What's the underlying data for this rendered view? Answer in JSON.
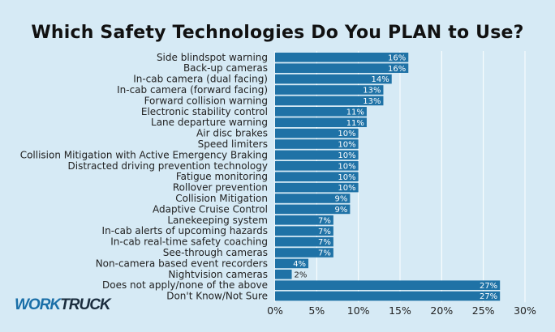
{
  "logo": {
    "part1": "WORK",
    "part2": "TRUCK"
  },
  "colors": {
    "bar": "#1f72a6",
    "background": "#d6eaf5",
    "grid": "#ffffff",
    "text": "#222222"
  },
  "chart_data": {
    "type": "bar",
    "orientation": "horizontal",
    "title": "Which Safety Technologies Do You PLAN to Use?",
    "xlabel": "",
    "ylabel": "",
    "xlim": [
      0,
      30
    ],
    "x_ticks": [
      "0%",
      "5%",
      "10%",
      "15%",
      "20%",
      "25%",
      "30%"
    ],
    "grid": "vertical",
    "categories": [
      "Side blindspot warning",
      "Back-up cameras",
      "In-cab camera (dual facing)",
      "In-cab camera (forward facing)",
      "Forward collision warning",
      "Electronic stability control",
      "Lane departure warning",
      "Air disc brakes",
      "Speed limiters",
      "Collision Mitigation with Active Emergency Braking",
      "Distracted driving prevention technology",
      "Fatigue monitoring",
      "Rollover prevention",
      "Collision Mitigation",
      "Adaptive Cruise Control",
      "Lanekeeping system",
      "In-cab alerts of upcoming hazards",
      "In-cab real-time safety coaching",
      "See-through cameras",
      "Non-camera based event recorders",
      "Nightvision cameras",
      "Does not apply/none of the above",
      "Don't Know/Not Sure"
    ],
    "values": [
      16,
      16,
      14,
      13,
      13,
      11,
      11,
      10,
      10,
      10,
      10,
      10,
      10,
      9,
      9,
      7,
      7,
      7,
      7,
      4,
      2,
      27,
      27
    ],
    "data_labels": [
      "16%",
      "16%",
      "14%",
      "13%",
      "13%",
      "11%",
      "11%",
      "10%",
      "10%",
      "10%",
      "10%",
      "10%",
      "10%",
      "9%",
      "9%",
      "7%",
      "7%",
      "7%",
      "7%",
      "4%",
      "2%",
      "27%",
      "27%"
    ]
  }
}
